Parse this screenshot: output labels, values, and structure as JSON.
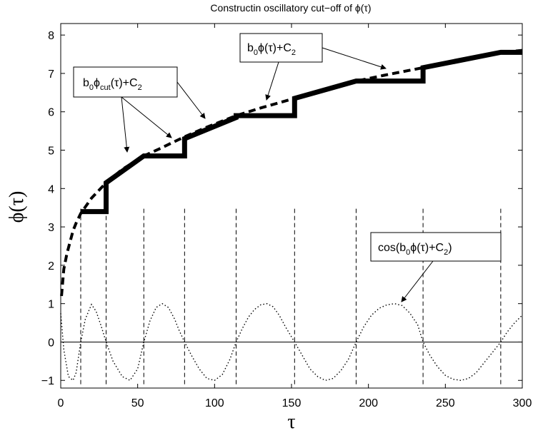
{
  "chart_data": {
    "type": "line",
    "title": "Constructin oscillatory cut−off of ϕ(τ)",
    "xlabel": "τ",
    "ylabel": "ϕ(τ)",
    "xlim": [
      0,
      300
    ],
    "ylim": [
      -1.2,
      8.3
    ],
    "x_ticks": [
      "0",
      "50",
      "100",
      "150",
      "200",
      "250",
      "300"
    ],
    "y_ticks": [
      "−1",
      "0",
      "1",
      "2",
      "3",
      "4",
      "5",
      "6",
      "7",
      "8"
    ],
    "zero_line": 0,
    "vertical_dashed_x": [
      13,
      29.5,
      54,
      80.5,
      114,
      152,
      192,
      235.5,
      286
    ],
    "phi_series": {
      "style": "dashed",
      "x": [
        0.5,
        2,
        4,
        6,
        8,
        10,
        13,
        20,
        29.5,
        40,
        54,
        65,
        80.5,
        95,
        114,
        130,
        152,
        170,
        192,
        210,
        235.5,
        260,
        286,
        300
      ],
      "y": [
        1.2,
        1.9,
        2.3,
        2.6,
        2.9,
        3.1,
        3.35,
        3.75,
        4.15,
        4.5,
        4.85,
        5.05,
        5.35,
        5.6,
        5.9,
        6.1,
        6.35,
        6.55,
        6.8,
        6.95,
        7.15,
        7.35,
        7.55,
        7.6
      ]
    },
    "phi_cut_series": {
      "style": "thick-solid",
      "x": [
        13,
        29.5,
        29.5,
        54,
        54,
        80.5,
        80.5,
        114,
        114,
        152,
        152,
        192,
        192,
        235.5,
        235.5,
        286,
        286,
        300
      ],
      "y": [
        3.4,
        3.4,
        4.15,
        4.85,
        4.85,
        4.85,
        5.3,
        5.85,
        5.9,
        5.9,
        6.35,
        6.8,
        6.8,
        6.8,
        7.15,
        7.55,
        7.55,
        7.55
      ]
    },
    "cos_series": {
      "style": "dotted",
      "x": [
        0,
        2,
        5,
        8,
        10,
        13,
        16,
        20,
        23,
        26,
        29.5,
        34,
        40,
        45,
        50,
        54,
        58,
        62,
        66,
        70,
        74,
        77,
        80.5,
        85,
        90,
        95,
        100,
        105,
        110,
        114,
        118,
        122,
        126,
        130,
        134,
        138,
        142,
        146,
        152,
        157,
        162,
        167,
        172,
        177,
        182,
        187,
        192,
        197,
        202,
        207,
        212,
        217,
        222,
        227,
        232,
        235.5,
        240,
        245,
        250,
        255,
        260,
        265,
        270,
        275,
        280,
        286,
        290,
        295,
        300
      ],
      "y": [
        0.75,
        -0.2,
        -0.9,
        -1,
        -0.8,
        0,
        0.6,
        0.98,
        0.8,
        0.45,
        0,
        -0.5,
        -0.9,
        -1,
        -0.7,
        0,
        0.55,
        0.9,
        1,
        0.9,
        0.6,
        0.3,
        0,
        -0.35,
        -0.7,
        -0.95,
        -1,
        -0.85,
        -0.45,
        0,
        0.35,
        0.65,
        0.85,
        0.97,
        1,
        0.92,
        0.7,
        0.4,
        0,
        -0.35,
        -0.7,
        -0.9,
        -1,
        -0.95,
        -0.75,
        -0.45,
        0,
        0.4,
        0.7,
        0.88,
        0.97,
        1,
        0.95,
        0.75,
        0.45,
        0,
        -0.35,
        -0.65,
        -0.87,
        -0.97,
        -1,
        -0.95,
        -0.8,
        -0.55,
        -0.3,
        0,
        0.25,
        0.5,
        0.7
      ]
    },
    "annotations": [
      {
        "text": "b₀ϕcut(τ)+C₂",
        "main": "b",
        "sub1": "0",
        "mid": "ϕ",
        "sub2": "cut",
        "tail": "(τ)+C",
        "sub3": "2"
      },
      {
        "text": "b₀ϕ(τ)+C₂",
        "main": "b",
        "sub1": "0",
        "mid": "ϕ(τ)+C",
        "sub3": "2"
      },
      {
        "text": "cos(b₀ϕ(τ)+C₂)",
        "main": "cos(b",
        "sub1": "0",
        "mid": "ϕ(τ)+C",
        "sub3": "2",
        "tail": ")"
      }
    ]
  }
}
